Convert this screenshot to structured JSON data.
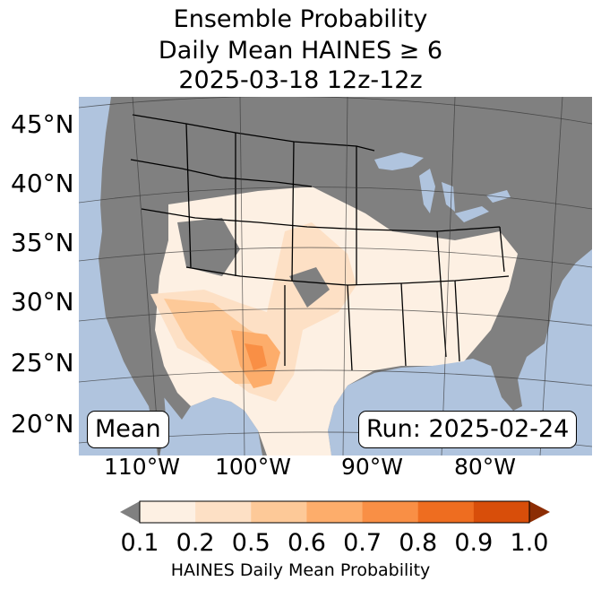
{
  "title": {
    "line1": "Ensemble Probability",
    "line2": "Daily Mean HAINES ≥ 6",
    "line3": "2025-03-18 12z-12z"
  },
  "lat_labels": [
    "45°N",
    "40°N",
    "35°N",
    "30°N",
    "25°N",
    "20°N"
  ],
  "lon_labels": [
    "110°W",
    "100°W",
    "90°W",
    "80°W"
  ],
  "stat_box": "Mean",
  "run_box": "Run: 2025-02-24",
  "colorbar": {
    "ticks": [
      "0.1",
      "0.2",
      "0.5",
      "0.6",
      "0.7",
      "0.8",
      "0.9",
      "1.0"
    ],
    "label": "HAINES Daily Mean Probability",
    "colors": [
      "#fdf0e3",
      "#fde0c5",
      "#fdc998",
      "#fdad6b",
      "#f98f45",
      "#ee6d20",
      "#d84e0a"
    ],
    "under_color": "#808080",
    "over_color": "#8c2d04"
  },
  "map_colors": {
    "ocean": "#b0c4de",
    "land_below": "#808080"
  }
}
